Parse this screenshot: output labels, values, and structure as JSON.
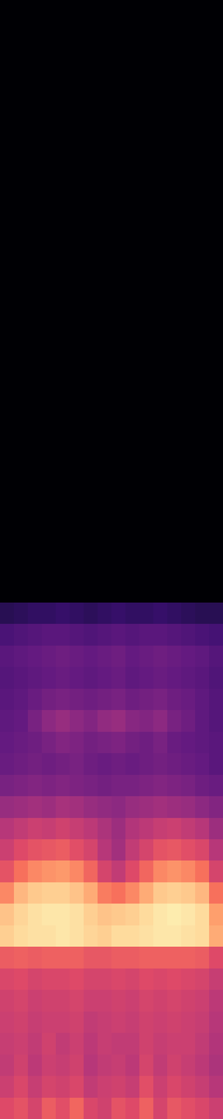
{
  "chart_data": {
    "type": "heatmap",
    "color": "magma",
    "tick_labels": false,
    "grid": false,
    "zlim": [
      -80,
      0
    ],
    "cells": [
      [
        -32,
        -30,
        -34,
        -28,
        -31,
        -26,
        -33,
        -35,
        -30,
        -32,
        -27,
        -34,
        -29,
        -31,
        -33,
        -36
      ],
      [
        -36,
        -33,
        -37,
        -34,
        -35,
        -33,
        -38,
        -36,
        -35,
        -37,
        -31,
        -36,
        -33,
        -35,
        -37,
        -40
      ],
      [
        -38,
        -35,
        -39,
        -36,
        -37,
        -35,
        -40,
        -38,
        -37,
        -39,
        -34,
        -38,
        -35,
        -37,
        -39,
        -42
      ],
      [
        -37,
        -36,
        -38,
        -35,
        -38,
        -36,
        -39,
        -37,
        -38,
        -38,
        -35,
        -37,
        -36,
        -36,
        -38,
        -41
      ],
      [
        -36,
        -35,
        -37,
        -36,
        -36,
        -35,
        -38,
        -37,
        -36,
        -37,
        -35,
        -36,
        -35,
        -36,
        -37,
        -40
      ],
      [
        -35,
        -34,
        -36,
        -35,
        -35,
        -34,
        -36,
        -36,
        -35,
        -36,
        -34,
        -35,
        -34,
        -35,
        -36,
        -39
      ],
      [
        -33,
        -32,
        -34,
        -33,
        -33,
        -32,
        -34,
        -34,
        -33,
        -34,
        -32,
        -33,
        -32,
        -33,
        -34,
        -37
      ],
      [
        -28,
        -27,
        -28,
        -27,
        -27,
        -27,
        -29,
        -29,
        -28,
        -28,
        -27,
        -27,
        -27,
        -27,
        -28,
        -32
      ],
      [
        -8,
        -6,
        -5,
        -5,
        -4,
        -5,
        -7,
        -8,
        -6,
        -6,
        -5,
        -4,
        -4,
        -5,
        -6,
        -14
      ],
      [
        -10,
        -7,
        -5,
        -4,
        -4,
        -5,
        -8,
        -10,
        -9,
        -8,
        -6,
        -4,
        -3,
        -4,
        -6,
        -16
      ],
      [
        -20,
        -12,
        -9,
        -8,
        -8,
        -10,
        -14,
        -22,
        -24,
        -20,
        -14,
        -9,
        -8,
        -9,
        -12,
        -24
      ],
      [
        -30,
        -24,
        -20,
        -18,
        -17,
        -20,
        -26,
        -34,
        -38,
        -32,
        -26,
        -20,
        -18,
        -20,
        -24,
        -34
      ],
      [
        -36,
        -32,
        -30,
        -29,
        -28,
        -31,
        -34,
        -40,
        -44,
        -38,
        -34,
        -30,
        -29,
        -31,
        -33,
        -40
      ],
      [
        -40,
        -38,
        -36,
        -37,
        -35,
        -37,
        -39,
        -42,
        -45,
        -41,
        -39,
        -37,
        -36,
        -38,
        -40,
        -45
      ],
      [
        -46,
        -45,
        -44,
        -45,
        -43,
        -44,
        -46,
        -47,
        -48,
        -46,
        -45,
        -44,
        -45,
        -46,
        -48,
        -50
      ],
      [
        -52,
        -51,
        -50,
        -51,
        -50,
        -51,
        -52,
        -53,
        -52,
        -52,
        -51,
        -50,
        -51,
        -52,
        -54,
        -55
      ],
      [
        -55,
        -54,
        -53,
        -54,
        -53,
        -52,
        -54,
        -55,
        -54,
        -55,
        -54,
        -53,
        -54,
        -55,
        -56,
        -58
      ],
      [
        -56,
        -55,
        -54,
        -52,
        -50,
        -51,
        -53,
        -52,
        -51,
        -53,
        -54,
        -52,
        -55,
        -56,
        -57,
        -58
      ],
      [
        -57,
        -56,
        -52,
        -48,
        -46,
        -48,
        -50,
        -47,
        -46,
        -49,
        -50,
        -48,
        -52,
        -54,
        -57,
        -59
      ],
      [
        -58,
        -57,
        -55,
        -53,
        -52,
        -53,
        -54,
        -53,
        -52,
        -54,
        -53,
        -52,
        -54,
        -55,
        -57,
        -59
      ],
      [
        -59,
        -58,
        -57,
        -56,
        -55,
        -56,
        -57,
        -56,
        -55,
        -57,
        -56,
        -55,
        -56,
        -57,
        -58,
        -60
      ],
      [
        -58,
        -57,
        -56,
        -55,
        -54,
        -55,
        -56,
        -55,
        -54,
        -56,
        -55,
        -54,
        -55,
        -56,
        -57,
        -59
      ],
      [
        -61,
        -60,
        -59,
        -58,
        -58,
        -59,
        -60,
        -59,
        -58,
        -59,
        -58,
        -58,
        -59,
        -60,
        -61,
        -62
      ],
      [
        -68,
        -67,
        -66,
        -66,
        -65,
        -66,
        -67,
        -66,
        -65,
        -66,
        -66,
        -65,
        -66,
        -67,
        -68,
        -68
      ],
      [
        -80,
        -80,
        -80,
        -80,
        -80,
        -80,
        -80,
        -80,
        -80,
        -80,
        -80,
        -80,
        -80,
        -80,
        -80,
        -80
      ],
      [
        -80,
        -80,
        -80,
        -80,
        -80,
        -80,
        -80,
        -80,
        -80,
        -80,
        -80,
        -80,
        -80,
        -80,
        -80,
        -80
      ],
      [
        -80,
        -80,
        -80,
        -80,
        -80,
        -80,
        -80,
        -80,
        -80,
        -80,
        -80,
        -80,
        -80,
        -80,
        -80,
        -80
      ],
      [
        -80,
        -80,
        -80,
        -80,
        -80,
        -80,
        -80,
        -80,
        -80,
        -80,
        -80,
        -80,
        -80,
        -80,
        -80,
        -80
      ],
      [
        -80,
        -80,
        -80,
        -80,
        -80,
        -80,
        -80,
        -80,
        -80,
        -80,
        -80,
        -80,
        -80,
        -80,
        -80,
        -80
      ],
      [
        -80,
        -80,
        -80,
        -80,
        -80,
        -80,
        -80,
        -80,
        -80,
        -80,
        -80,
        -80,
        -80,
        -80,
        -80,
        -80
      ],
      [
        -80,
        -80,
        -80,
        -80,
        -80,
        -80,
        -80,
        -80,
        -80,
        -80,
        -80,
        -80,
        -80,
        -80,
        -80,
        -80
      ],
      [
        -80,
        -80,
        -80,
        -80,
        -80,
        -80,
        -80,
        -80,
        -80,
        -80,
        -80,
        -80,
        -80,
        -80,
        -80,
        -80
      ],
      [
        -80,
        -80,
        -80,
        -80,
        -80,
        -80,
        -80,
        -80,
        -80,
        -80,
        -80,
        -80,
        -80,
        -80,
        -80,
        -80
      ],
      [
        -80,
        -80,
        -80,
        -80,
        -80,
        -80,
        -80,
        -80,
        -80,
        -80,
        -80,
        -80,
        -80,
        -80,
        -80,
        -80
      ],
      [
        -80,
        -80,
        -80,
        -80,
        -80,
        -80,
        -80,
        -80,
        -80,
        -80,
        -80,
        -80,
        -80,
        -80,
        -80,
        -80
      ],
      [
        -80,
        -80,
        -80,
        -80,
        -80,
        -80,
        -80,
        -80,
        -80,
        -80,
        -80,
        -80,
        -80,
        -80,
        -80,
        -80
      ],
      [
        -80,
        -80,
        -80,
        -80,
        -80,
        -80,
        -80,
        -80,
        -80,
        -80,
        -80,
        -80,
        -80,
        -80,
        -80,
        -80
      ],
      [
        -80,
        -80,
        -80,
        -80,
        -80,
        -80,
        -80,
        -80,
        -80,
        -80,
        -80,
        -80,
        -80,
        -80,
        -80,
        -80
      ],
      [
        -80,
        -80,
        -80,
        -80,
        -80,
        -80,
        -80,
        -80,
        -80,
        -80,
        -80,
        -80,
        -80,
        -80,
        -80,
        -80
      ],
      [
        -80,
        -80,
        -80,
        -80,
        -80,
        -80,
        -80,
        -80,
        -80,
        -80,
        -80,
        -80,
        -80,
        -80,
        -80,
        -80
      ],
      [
        -80,
        -80,
        -80,
        -80,
        -80,
        -80,
        -80,
        -80,
        -80,
        -80,
        -80,
        -80,
        -80,
        -80,
        -80,
        -80
      ],
      [
        -80,
        -80,
        -80,
        -80,
        -80,
        -80,
        -80,
        -80,
        -80,
        -80,
        -80,
        -80,
        -80,
        -80,
        -80,
        -80
      ],
      [
        -80,
        -80,
        -80,
        -80,
        -80,
        -80,
        -80,
        -80,
        -80,
        -80,
        -80,
        -80,
        -80,
        -80,
        -80,
        -80
      ],
      [
        -80,
        -80,
        -80,
        -80,
        -80,
        -80,
        -80,
        -80,
        -80,
        -80,
        -80,
        -80,
        -80,
        -80,
        -80,
        -80
      ],
      [
        -80,
        -80,
        -80,
        -80,
        -80,
        -80,
        -80,
        -80,
        -80,
        -80,
        -80,
        -80,
        -80,
        -80,
        -80,
        -80
      ],
      [
        -80,
        -80,
        -80,
        -80,
        -80,
        -80,
        -80,
        -80,
        -80,
        -80,
        -80,
        -80,
        -80,
        -80,
        -80,
        -80
      ],
      [
        -80,
        -80,
        -80,
        -80,
        -80,
        -80,
        -80,
        -80,
        -80,
        -80,
        -80,
        -80,
        -80,
        -80,
        -80,
        -80
      ],
      [
        -80,
        -80,
        -80,
        -80,
        -80,
        -80,
        -80,
        -80,
        -80,
        -80,
        -80,
        -80,
        -80,
        -80,
        -80,
        -80
      ],
      [
        -80,
        -80,
        -80,
        -80,
        -80,
        -80,
        -80,
        -80,
        -80,
        -80,
        -80,
        -80,
        -80,
        -80,
        -80,
        -80
      ],
      [
        -80,
        -80,
        -80,
        -80,
        -80,
        -80,
        -80,
        -80,
        -80,
        -80,
        -80,
        -80,
        -80,
        -80,
        -80,
        -80
      ],
      [
        -80,
        -80,
        -80,
        -80,
        -80,
        -80,
        -80,
        -80,
        -80,
        -80,
        -80,
        -80,
        -80,
        -80,
        -80,
        -80
      ],
      [
        -80,
        -80,
        -80,
        -80,
        -80,
        -80,
        -80,
        -80,
        -80,
        -80,
        -80,
        -80,
        -80,
        -80,
        -80,
        -80
      ]
    ]
  }
}
